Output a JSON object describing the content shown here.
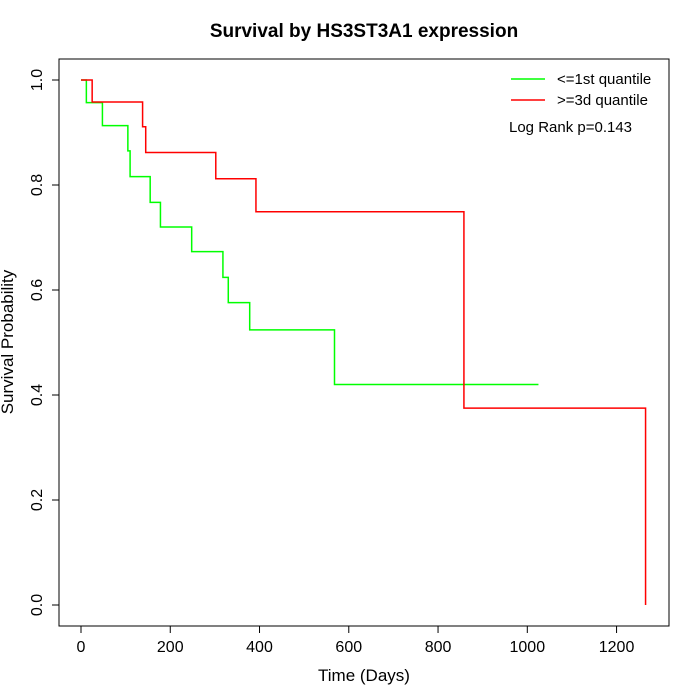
{
  "chart_data": {
    "type": "line",
    "title": "Survival by HS3ST3A1 expression",
    "xlabel": "Time (Days)",
    "ylabel": "Survival Probability",
    "xlim": [
      0,
      1265
    ],
    "ylim": [
      0,
      1.0
    ],
    "xticks": [
      0,
      200,
      400,
      600,
      800,
      1000,
      1200
    ],
    "yticks": [
      0.0,
      0.2,
      0.4,
      0.6,
      0.8,
      1.0
    ],
    "ytick_labels": [
      "0.0",
      "0.2",
      "0.4",
      "0.6",
      "0.8",
      "1.0"
    ],
    "legend_position": "top-right",
    "annotation": "Log Rank p=0.143",
    "series": [
      {
        "name": "<=1st quantile",
        "color": "#00ff00",
        "x": [
          0,
          12,
          48,
          105,
          110,
          155,
          178,
          248,
          318,
          330,
          378,
          568,
          1025
        ],
        "y": [
          1.0,
          0.957,
          0.913,
          0.865,
          0.816,
          0.767,
          0.72,
          0.673,
          0.624,
          0.576,
          0.524,
          0.42,
          0.42
        ]
      },
      {
        "name": ">=3d quantile",
        "color": "#ff0000",
        "x": [
          0,
          25,
          138,
          145,
          302,
          392,
          858,
          1265
        ],
        "y": [
          1.0,
          0.958,
          0.911,
          0.862,
          0.812,
          0.749,
          0.375,
          0.0
        ]
      }
    ]
  }
}
